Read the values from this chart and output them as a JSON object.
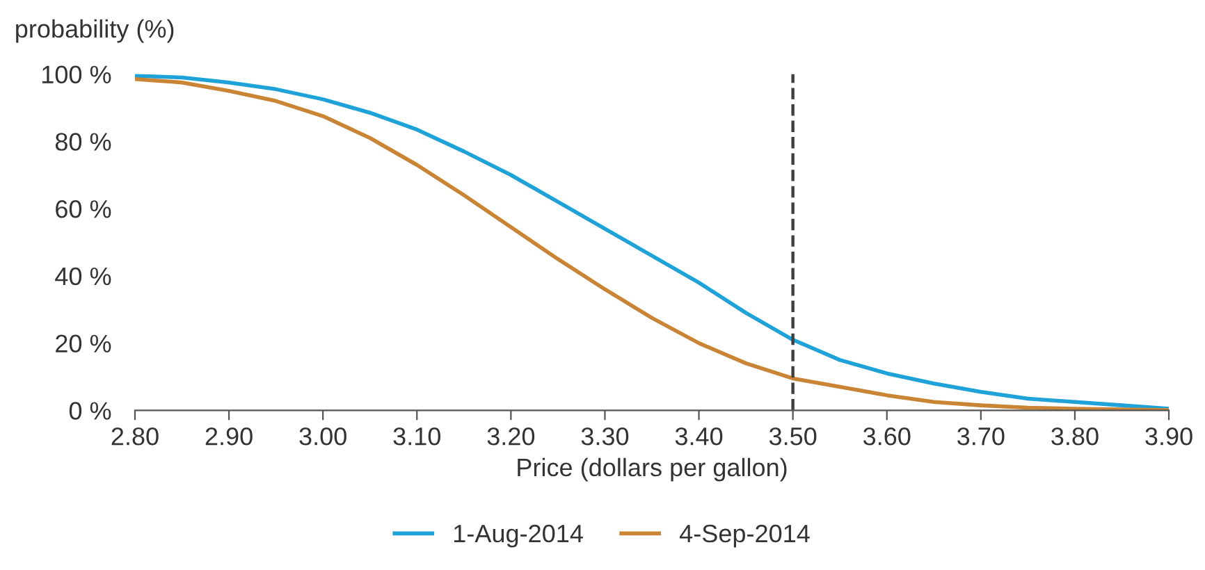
{
  "chart_data": {
    "type": "line",
    "ylabel": "probability (%)",
    "xlabel": "Price (dollars per gallon)",
    "x": [
      2.8,
      2.85,
      2.9,
      2.95,
      3.0,
      3.05,
      3.1,
      3.15,
      3.2,
      3.25,
      3.3,
      3.35,
      3.4,
      3.45,
      3.5,
      3.55,
      3.6,
      3.65,
      3.7,
      3.75,
      3.8,
      3.85,
      3.9
    ],
    "series": [
      {
        "name": "1-Aug-2014",
        "color": "#1fa2d8",
        "values": [
          99.5,
          99,
          97.5,
          95.5,
          92.5,
          88.5,
          83.5,
          77,
          70,
          62,
          54,
          46,
          38,
          29,
          21,
          15,
          11,
          8,
          5.5,
          3.5,
          2.5,
          1.5,
          0.5
        ]
      },
      {
        "name": "4-Sep-2014",
        "color": "#c98535",
        "values": [
          98.5,
          97.5,
          95,
          92,
          87.5,
          81,
          73,
          64,
          54.5,
          45,
          36,
          27.5,
          20,
          14,
          9.5,
          7,
          4.5,
          2.5,
          1.5,
          0.8,
          0.5,
          0.3,
          0.1
        ]
      }
    ],
    "xlim": [
      2.8,
      3.9
    ],
    "ylim": [
      0,
      100
    ],
    "xticks": [
      {
        "value": 2.8,
        "label": "2.80"
      },
      {
        "value": 2.9,
        "label": "2.90"
      },
      {
        "value": 3.0,
        "label": "3.00"
      },
      {
        "value": 3.1,
        "label": "3.10"
      },
      {
        "value": 3.2,
        "label": "3.20"
      },
      {
        "value": 3.3,
        "label": "3.30"
      },
      {
        "value": 3.4,
        "label": "3.40"
      },
      {
        "value": 3.5,
        "label": "3.50"
      },
      {
        "value": 3.6,
        "label": "3.60"
      },
      {
        "value": 3.7,
        "label": "3.70"
      },
      {
        "value": 3.8,
        "label": "3.80"
      },
      {
        "value": 3.9,
        "label": "3.90"
      }
    ],
    "yticks": [
      {
        "value": 0,
        "label": "0 %"
      },
      {
        "value": 20,
        "label": "20 %"
      },
      {
        "value": 40,
        "label": "40 %"
      },
      {
        "value": 60,
        "label": "60 %"
      },
      {
        "value": 80,
        "label": "80 %"
      },
      {
        "value": 100,
        "label": "100 %"
      }
    ],
    "ref_lines": [
      {
        "axis": "x",
        "value": 3.5,
        "label": null,
        "color": "#404040",
        "line_style": "dashed"
      }
    ],
    "grid": false,
    "legend": "bottom",
    "marker": "none",
    "line_style": "solid"
  }
}
